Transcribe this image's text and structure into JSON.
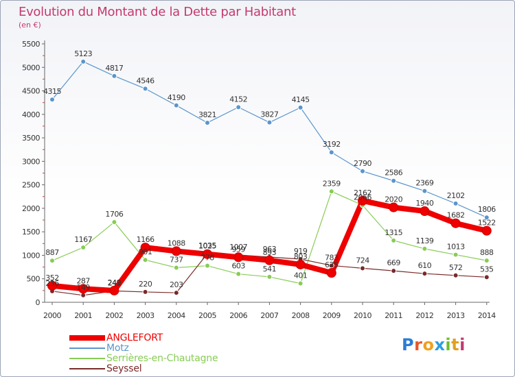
{
  "title": "Evolution du Montant de la Dette par Habitant",
  "subtitle": "(en €)",
  "brand": {
    "text": "Proxiti",
    "letter_colors": [
      "#2b7bd6",
      "#e8562a",
      "#f0a020",
      "#2b9de0",
      "#6cbf2a",
      "#e0a020",
      "#c43a6f"
    ]
  },
  "chart_data": {
    "type": "line",
    "title": "Evolution du Montant de la Dette par Habitant",
    "subtitle": "(en €)",
    "x": [
      "2000",
      "2001",
      "2002",
      "2003",
      "2004",
      "2005",
      "2006",
      "2007",
      "2008",
      "2009",
      "2010",
      "2011",
      "2012",
      "2013",
      "2014"
    ],
    "ylim": [
      0,
      5500
    ],
    "yticks": [
      0,
      500,
      1000,
      1500,
      2000,
      2500,
      3000,
      3500,
      4000,
      4500,
      5000,
      5500
    ],
    "grid": false,
    "legend_position": "bottom-left",
    "series": [
      {
        "name": "ANGLEFORT",
        "color": "#ee0000",
        "values": [
          352,
          287,
          249,
          1166,
          1088,
          1025,
          959,
          893,
          803,
          625,
          2162,
          2020,
          1940,
          1682,
          1522
        ]
      },
      {
        "name": "Motz",
        "color": "#5b95cc",
        "values": [
          4315,
          5123,
          4817,
          4546,
          4190,
          3821,
          4152,
          3827,
          4145,
          3192,
          2790,
          2586,
          2369,
          2102,
          1806
        ]
      },
      {
        "name": "Serrières-en-Chautagne",
        "color": "#88cc55",
        "values": [
          887,
          1167,
          1706,
          901,
          737,
          778,
          603,
          541,
          401,
          2359,
          2066,
          1315,
          1139,
          1013,
          888
        ]
      },
      {
        "name": "Seyssel",
        "color": "#7a2a2a",
        "values": [
          236,
          149,
          242,
          220,
          203,
          1035,
          1007,
          963,
          919,
          783,
          724,
          669,
          610,
          572,
          535
        ]
      }
    ]
  }
}
